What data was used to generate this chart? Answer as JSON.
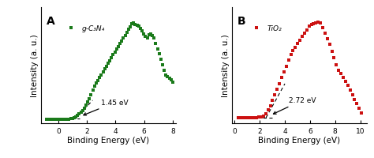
{
  "panel_A": {
    "label": "A",
    "legend_marker": "s",
    "legend_text": "g-C₃N₄",
    "color": "#1a7a1a",
    "xlabel": "Binding Energy (eV)",
    "ylabel": "Intensity (a. u.)",
    "xlim": [
      -1.2,
      8.2
    ],
    "xticks": [
      0,
      2,
      4,
      6,
      8
    ],
    "ylim": [
      0,
      1.12
    ],
    "annotation": "1.45 eV",
    "n_pts": 75
  },
  "panel_B": {
    "label": "B",
    "legend_marker": "s",
    "legend_text": "TiO₂",
    "color": "#cc1111",
    "xlabel": "Binding Energy (eV)",
    "ylabel": "Intensity (a. u.)",
    "xlim": [
      -0.2,
      10.5
    ],
    "xticks": [
      0,
      2,
      4,
      6,
      8,
      10
    ],
    "ylim": [
      0,
      1.12
    ],
    "annotation": "2.72 eV",
    "n_pts": 55
  },
  "bg_color": "#ffffff",
  "marker_size": 7,
  "font_label_size": 7.5,
  "font_tick_size": 6.5,
  "font_annot_size": 6.5,
  "font_panel_size": 10
}
